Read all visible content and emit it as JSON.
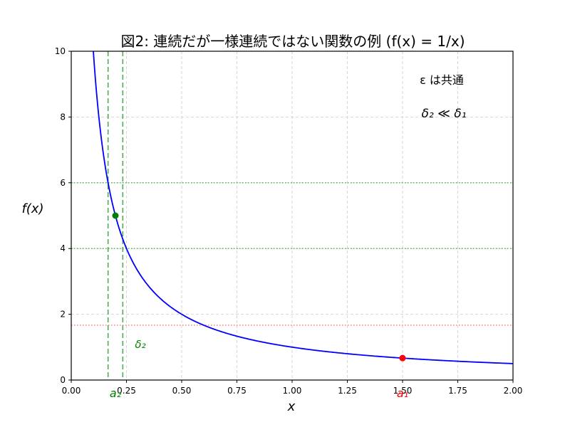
{
  "title": "図2: 連続だが一様連続ではない関数の例 (f(x) = 1/x)",
  "xlabel": "x",
  "ylabel": "f(x)",
  "annotations": {
    "epsilon_note": "ε は共通",
    "delta_note": "δ₂ ≪ δ₁",
    "delta2_label": "δ₂",
    "a1_label": "a₁",
    "a2_label": "a₂"
  },
  "xticks": [
    "0.00",
    "0.25",
    "0.50",
    "0.75",
    "1.00",
    "1.25",
    "1.50",
    "1.75",
    "2.00"
  ],
  "yticks": [
    "0",
    "2",
    "4",
    "6",
    "8",
    "10"
  ],
  "chart_data": {
    "type": "line",
    "title": "図2: 連続だが一様連続ではない関数の例 (f(x) = 1/x)",
    "xlabel": "x",
    "ylabel": "f(x)",
    "xlim": [
      0,
      2
    ],
    "ylim": [
      0,
      10
    ],
    "grid": true,
    "series": [
      {
        "name": "f(x) = 1/x",
        "color": "#0000ff",
        "function": "1/x",
        "x_range": [
          0.1,
          2.0
        ]
      }
    ],
    "points": [
      {
        "label": "a₁",
        "x": 1.5,
        "y": 0.667,
        "color": "#ff0000"
      },
      {
        "label": "a₂",
        "x": 0.2,
        "y": 5.0,
        "color": "#008000"
      }
    ],
    "hlines": [
      {
        "y": 6.0,
        "color": "#4caf50",
        "style": "dotted"
      },
      {
        "y": 4.0,
        "color": "#4caf50",
        "style": "dotted"
      },
      {
        "y": 1.667,
        "color": "#ff6666",
        "style": "dotted"
      }
    ],
    "vlines": [
      {
        "x": 0.1667,
        "color": "#4caf50",
        "style": "dashed"
      },
      {
        "x": 0.2333,
        "color": "#4caf50",
        "style": "dashed"
      }
    ],
    "text_annotations": [
      "ε は共通",
      "δ₂ ≪ δ₁",
      "δ₂",
      "a₁",
      "a₂"
    ]
  }
}
